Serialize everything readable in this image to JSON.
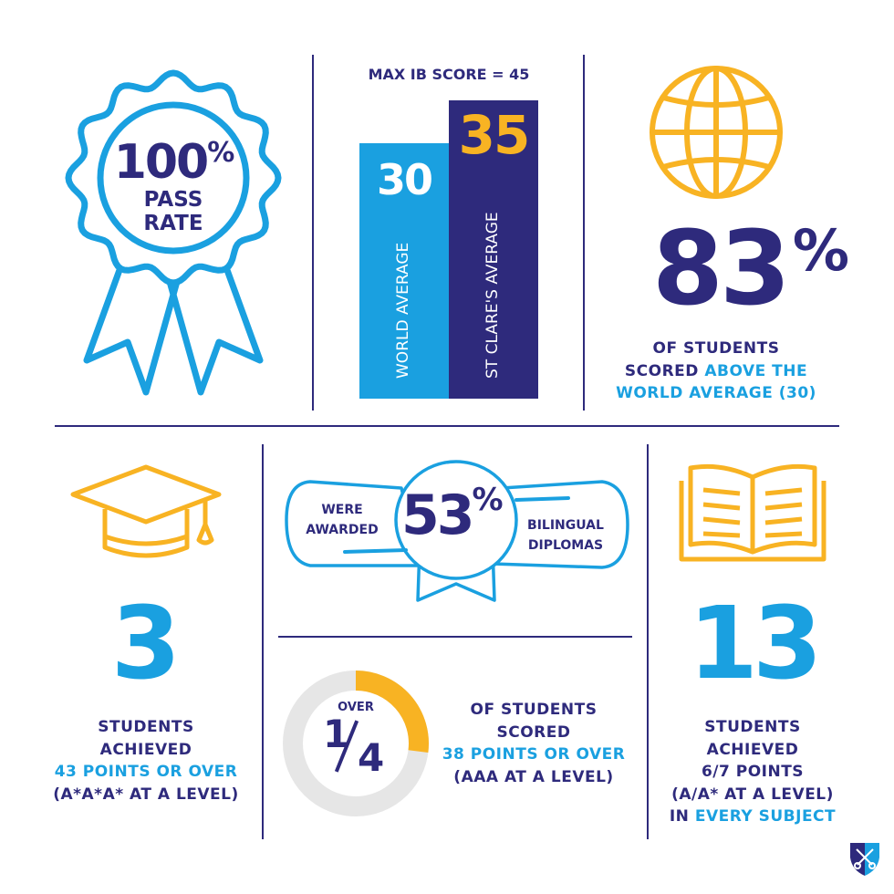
{
  "colors": {
    "navy": "#2e2a7c",
    "blue": "#1aa0e0",
    "yellow": "#f8b323",
    "gray": "#e6e6e6"
  },
  "pass_rate": {
    "value": "100",
    "unit": "%",
    "label_line1": "PASS",
    "label_line2": "RATE",
    "icon": "rosette-icon"
  },
  "chart_data": {
    "type": "bar",
    "title": "MAX IB SCORE = 45",
    "ylim": [
      0,
      45
    ],
    "categories": [
      "WORLD AVERAGE",
      "ST CLARE'S AVERAGE"
    ],
    "values": [
      30,
      35
    ],
    "value_labels": [
      "30",
      "35"
    ],
    "bar_colors": [
      "#1aa0e0",
      "#2e2a7c"
    ],
    "label_colors": [
      "#ffffff",
      "#f8b323"
    ]
  },
  "above_world": {
    "value": "83",
    "unit": "%",
    "line1": "OF STUDENTS",
    "line2_a": "SCORED ",
    "line2_b": "ABOVE THE",
    "line3": "WORLD AVERAGE (30)",
    "icon": "globe-icon"
  },
  "top_scorers": {
    "value": "3",
    "line1": "STUDENTS",
    "line2": "ACHIEVED",
    "line3": "43 POINTS OR OVER",
    "line4": "(A*A*A* AT A LEVEL)",
    "icon": "graduation-cap-icon"
  },
  "bilingual": {
    "value": "53",
    "unit": "%",
    "left_line1": "WERE",
    "left_line2": "AWARDED",
    "right_line1": "BILINGUAL",
    "right_line2": "DIPLOMAS",
    "icon": "diploma-scroll-icon"
  },
  "quarter": {
    "over": "OVER",
    "numerator": "1",
    "denominator": "4",
    "fraction": 0.27,
    "line1": "OF STUDENTS",
    "line2": "SCORED",
    "line3": "38 POINTS OR OVER",
    "line4": "(AAA AT A LEVEL)"
  },
  "every_subject": {
    "value": "13",
    "line1": "STUDENTS",
    "line2": "ACHIEVED",
    "line3": "6/7 POINTS",
    "line4": "(A/A* AT A LEVEL)",
    "line5_a": "IN ",
    "line5_b": "EVERY SUBJECT",
    "icon": "open-book-icon"
  },
  "logo": {
    "icon": "shield-keys-logo"
  }
}
